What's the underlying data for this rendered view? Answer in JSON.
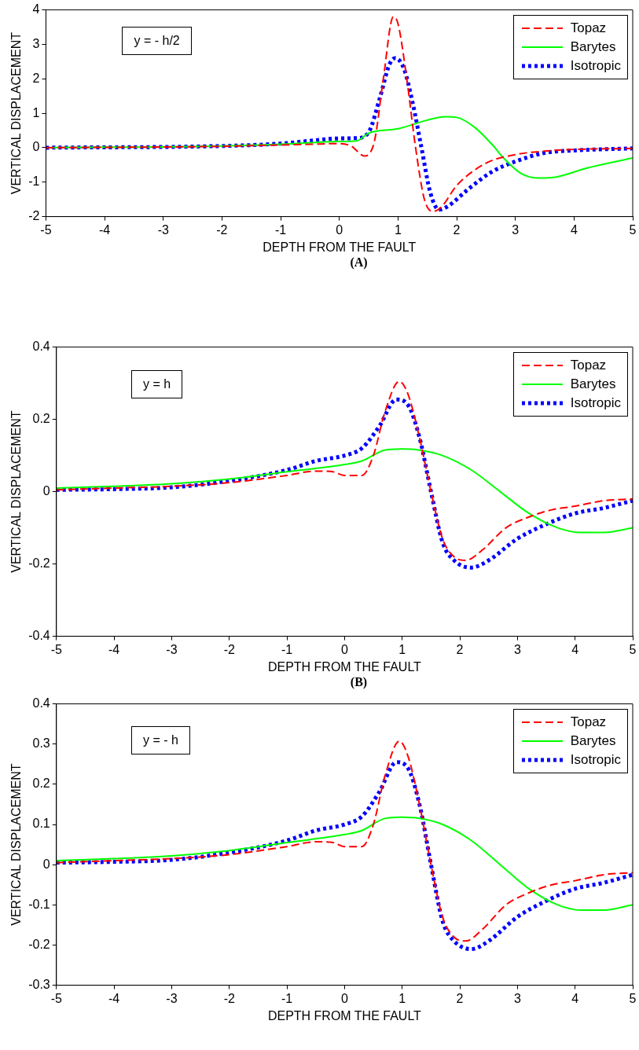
{
  "chart_data": [
    {
      "type": "line",
      "xlabel": "DEPTH FROM THE FAULT",
      "ylabel": "VERTICAL DISPLACEMENT",
      "annotations": [
        "y = - h/2",
        "(A)"
      ],
      "xlim": [
        -5,
        5
      ],
      "xticks": [
        -5,
        -4,
        -3,
        -2,
        -1,
        0,
        1,
        2,
        3,
        4,
        5
      ],
      "ylim": [
        -2,
        4
      ],
      "yticks": [
        -2,
        -1,
        0,
        1,
        2,
        3,
        4
      ],
      "grid": false,
      "legend": "top right",
      "marker": "none",
      "series": [
        {
          "name": "Topaz",
          "color": "#ff0000",
          "line_style": "dashed",
          "x": [
            -5,
            -4,
            -3,
            -2,
            -1,
            -0.5,
            0,
            0.2,
            0.43,
            0.6,
            0.75,
            0.92,
            1.0,
            1.15,
            1.3,
            1.45,
            1.6,
            1.75,
            2.0,
            2.5,
            3,
            3.5,
            4,
            5
          ],
          "values": [
            0,
            0.01,
            0.02,
            0.04,
            0.08,
            0.1,
            0.12,
            0.05,
            -0.24,
            0.2,
            2.0,
            3.8,
            3.6,
            2.0,
            0,
            -1.5,
            -1.85,
            -1.7,
            -1.1,
            -0.45,
            -0.2,
            -0.1,
            -0.05,
            -0.02
          ]
        },
        {
          "name": "Barytes",
          "color": "#00ff00",
          "line_style": "solid",
          "x": [
            -5,
            -2,
            -1,
            0,
            0.3,
            0.5,
            1,
            1.5,
            1.8,
            2.0,
            2.3,
            2.6,
            2.8,
            3.1,
            3.4,
            3.7,
            4.2,
            5
          ],
          "values": [
            0,
            0.05,
            0.1,
            0.18,
            0.2,
            0.42,
            0.55,
            0.8,
            0.9,
            0.88,
            0.6,
            0.1,
            -0.3,
            -0.75,
            -0.88,
            -0.85,
            -0.6,
            -0.3
          ]
        },
        {
          "name": "Isotropic",
          "color": "#0000ff",
          "line_style": "dotted",
          "x": [
            -5,
            -2,
            -1,
            -0.5,
            0,
            0.3,
            0.5,
            0.7,
            0.85,
            0.95,
            1.1,
            1.25,
            1.4,
            1.55,
            1.7,
            1.85,
            2.2,
            2.6,
            3,
            3.5,
            4,
            5
          ],
          "values": [
            0,
            0.05,
            0.12,
            0.2,
            0.27,
            0.28,
            0.45,
            1.5,
            2.4,
            2.6,
            2.3,
            1.3,
            0,
            -1.3,
            -1.8,
            -1.7,
            -1.2,
            -0.7,
            -0.4,
            -0.15,
            -0.08,
            -0.02
          ]
        }
      ]
    },
    {
      "type": "line",
      "xlabel": "DEPTH FROM THE FAULT",
      "ylabel": "VERTICAL DISPLACEMENT",
      "annotations": [
        "y = h",
        "(B)"
      ],
      "xlim": [
        -5,
        5
      ],
      "xticks": [
        -5,
        -4,
        -3,
        -2,
        -1,
        0,
        1,
        2,
        3,
        4,
        5
      ],
      "ylim": [
        -0.4,
        0.4
      ],
      "yticks": [
        -0.4,
        -0.2,
        0,
        0.2,
        0.4
      ],
      "grid": false,
      "legend": "top right",
      "marker": "none",
      "series": [
        {
          "name": "Topaz",
          "color": "#ff0000",
          "line_style": "dashed",
          "x": [
            -5,
            -4,
            -3,
            -2,
            -1,
            -0.5,
            -0.2,
            0,
            0.3,
            0.5,
            0.7,
            0.95,
            1.1,
            1.3,
            1.5,
            1.7,
            1.9,
            2.1,
            2.4,
            2.8,
            3.2,
            3.6,
            4,
            4.5,
            5
          ],
          "values": [
            0.005,
            0.01,
            0.015,
            0.025,
            0.045,
            0.057,
            0.055,
            0.045,
            0.045,
            0.1,
            0.22,
            0.305,
            0.27,
            0.15,
            0.0,
            -0.13,
            -0.18,
            -0.19,
            -0.16,
            -0.1,
            -0.07,
            -0.05,
            -0.04,
            -0.025,
            -0.02
          ]
        },
        {
          "name": "Barytes",
          "color": "#00ff00",
          "line_style": "solid",
          "x": [
            -5,
            -4,
            -3,
            -2,
            -1,
            0,
            0.3,
            0.7,
            1.0,
            1.3,
            1.7,
            2.2,
            2.7,
            3.2,
            3.7,
            4.1,
            4.5,
            5
          ],
          "values": [
            0.01,
            0.015,
            0.022,
            0.035,
            0.055,
            0.075,
            0.085,
            0.115,
            0.118,
            0.115,
            0.1,
            0.06,
            0.0,
            -0.06,
            -0.1,
            -0.113,
            -0.113,
            -0.1
          ]
        },
        {
          "name": "Isotropic",
          "color": "#0000ff",
          "line_style": "dotted",
          "x": [
            -5,
            -4,
            -3,
            -2,
            -1,
            -0.5,
            0,
            0.3,
            0.6,
            0.9,
            1.1,
            1.3,
            1.5,
            1.7,
            1.9,
            2.2,
            2.5,
            3,
            3.5,
            4,
            4.5,
            5
          ],
          "values": [
            0.005,
            0.007,
            0.012,
            0.03,
            0.06,
            0.085,
            0.1,
            0.12,
            0.18,
            0.255,
            0.24,
            0.15,
            0.0,
            -0.14,
            -0.19,
            -0.21,
            -0.19,
            -0.13,
            -0.09,
            -0.06,
            -0.045,
            -0.025
          ]
        }
      ]
    },
    {
      "type": "line",
      "xlabel": "DEPTH FROM THE FAULT",
      "ylabel": "VERTICAL DISPLACEMENT",
      "annotations": [
        "y = - h"
      ],
      "xlim": [
        -5,
        5
      ],
      "xticks": [
        -5,
        -4,
        -3,
        -2,
        -1,
        0,
        1,
        2,
        3,
        4,
        5
      ],
      "ylim": [
        -0.3,
        0.4
      ],
      "yticks": [
        -0.3,
        -0.2,
        -0.1,
        0,
        0.1,
        0.2,
        0.3,
        0.4
      ],
      "grid": false,
      "legend": "top right",
      "marker": "none",
      "series": [
        {
          "name": "Topaz",
          "color": "#ff0000",
          "line_style": "dashed",
          "x": [
            -5,
            -4,
            -3,
            -2,
            -1,
            -0.5,
            -0.2,
            0,
            0.3,
            0.5,
            0.7,
            0.95,
            1.1,
            1.3,
            1.5,
            1.7,
            1.9,
            2.1,
            2.4,
            2.8,
            3.2,
            3.6,
            4,
            4.5,
            5
          ],
          "values": [
            0.005,
            0.01,
            0.015,
            0.025,
            0.045,
            0.057,
            0.055,
            0.045,
            0.045,
            0.1,
            0.22,
            0.307,
            0.27,
            0.15,
            0.0,
            -0.13,
            -0.18,
            -0.19,
            -0.16,
            -0.1,
            -0.07,
            -0.05,
            -0.04,
            -0.025,
            -0.02
          ]
        },
        {
          "name": "Barytes",
          "color": "#00ff00",
          "line_style": "solid",
          "x": [
            -5,
            -4,
            -3,
            -2,
            -1,
            0,
            0.3,
            0.7,
            1.0,
            1.3,
            1.7,
            2.2,
            2.7,
            3.2,
            3.7,
            4.1,
            4.5,
            5
          ],
          "values": [
            0.01,
            0.015,
            0.022,
            0.035,
            0.055,
            0.075,
            0.085,
            0.115,
            0.118,
            0.115,
            0.1,
            0.06,
            0.0,
            -0.06,
            -0.1,
            -0.113,
            -0.113,
            -0.1
          ]
        },
        {
          "name": "Isotropic",
          "color": "#0000ff",
          "line_style": "dotted",
          "x": [
            -5,
            -4,
            -3,
            -2,
            -1,
            -0.5,
            0,
            0.3,
            0.6,
            0.9,
            1.1,
            1.3,
            1.5,
            1.7,
            1.9,
            2.2,
            2.5,
            3,
            3.5,
            4,
            4.5,
            5
          ],
          "values": [
            0.005,
            0.007,
            0.012,
            0.03,
            0.06,
            0.085,
            0.1,
            0.12,
            0.18,
            0.255,
            0.24,
            0.15,
            0.0,
            -0.14,
            -0.19,
            -0.21,
            -0.19,
            -0.13,
            -0.09,
            -0.06,
            -0.045,
            -0.025
          ]
        }
      ]
    }
  ]
}
